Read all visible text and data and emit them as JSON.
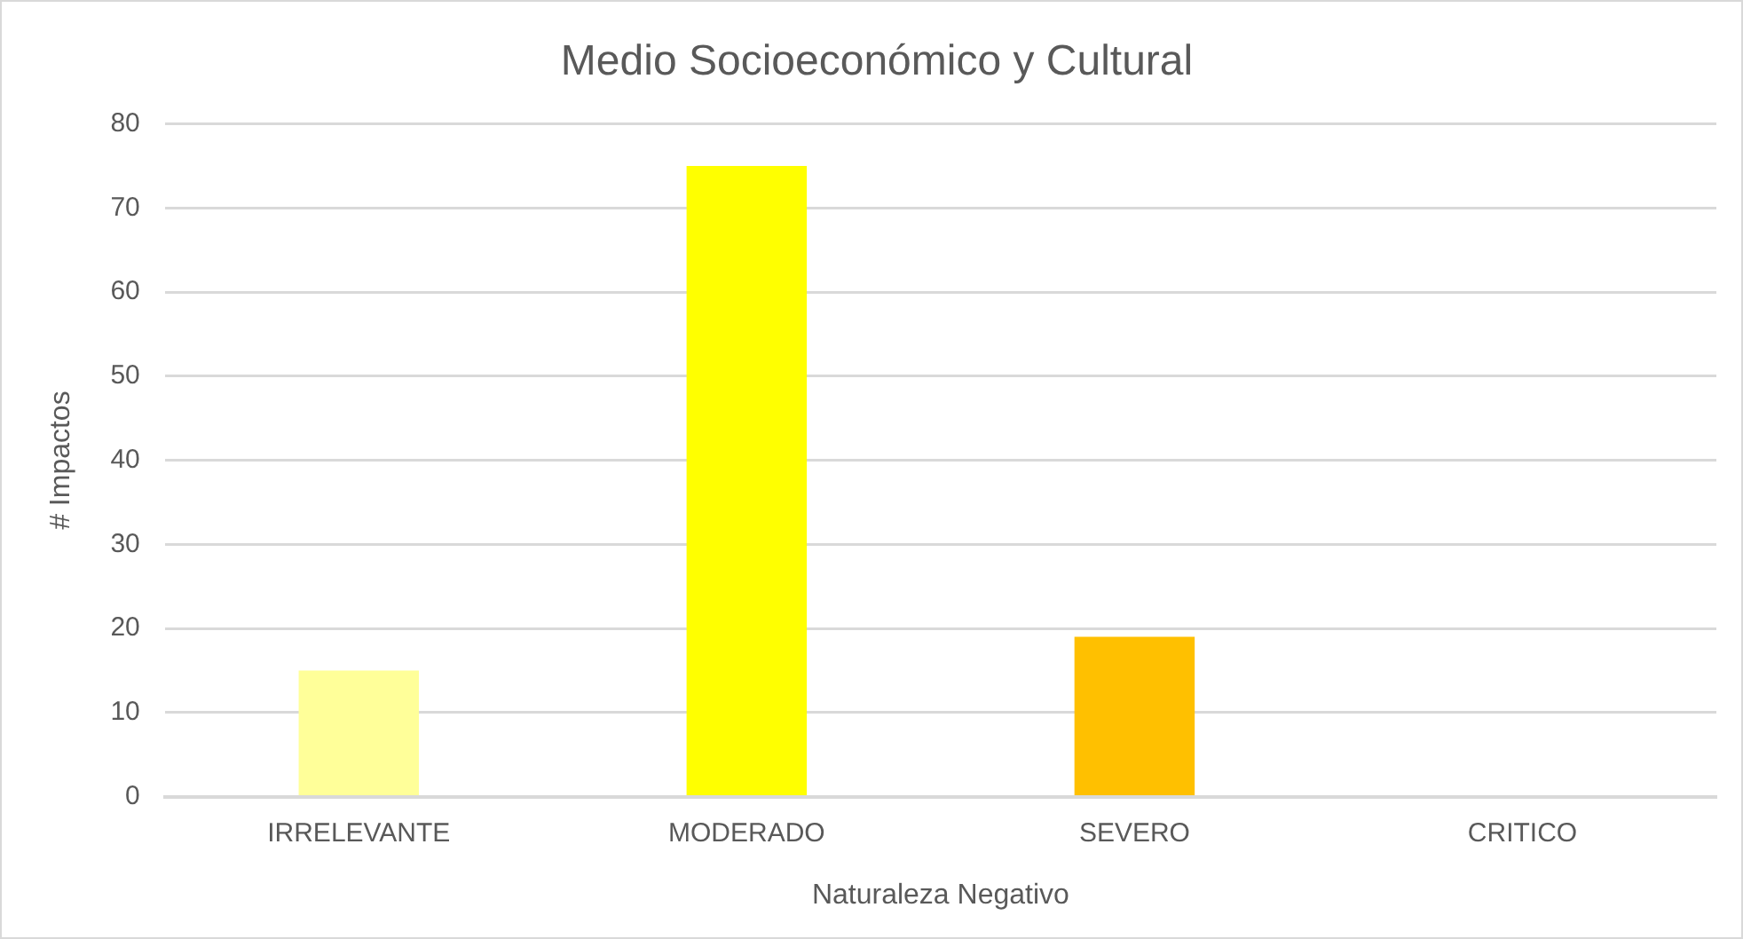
{
  "chart_data": {
    "type": "bar",
    "title": "Medio Socioeconómico y Cultural",
    "xlabel": "Naturaleza Negativo",
    "ylabel": "# Impactos",
    "categories": [
      "IRRELEVANTE",
      "MODERADO",
      "SEVERO",
      "CRITICO"
    ],
    "values": [
      15,
      75,
      19,
      0
    ],
    "colors": [
      "#ffff99",
      "#ffff00",
      "#ffc000",
      "#ffc000"
    ],
    "ylim": [
      0,
      80
    ],
    "yticks": [
      0,
      10,
      20,
      30,
      40,
      50,
      60,
      70,
      80
    ],
    "grid": "y"
  }
}
